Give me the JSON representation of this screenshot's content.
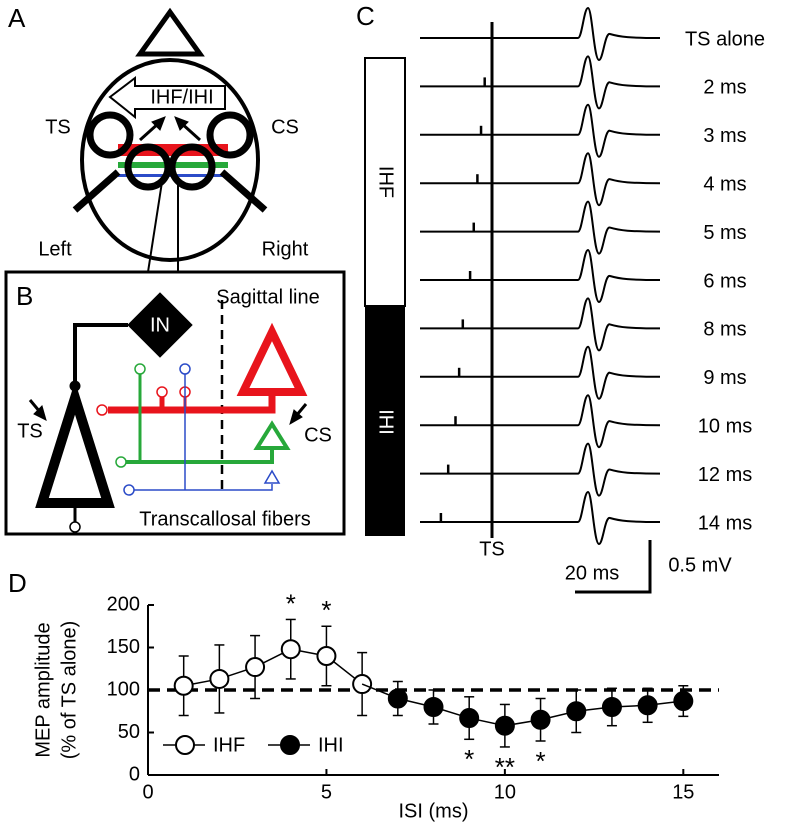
{
  "panels": {
    "a": {
      "label": "A",
      "arrow_label": "IHF/IHI",
      "left_coil": "TS",
      "right_coil": "CS",
      "left": "Left",
      "right": "Right"
    },
    "b": {
      "label": "B",
      "interneuron": "IN",
      "sagittal_line": "Sagittal line",
      "ts": "TS",
      "cs": "CS",
      "fibers": "Transcallosal fibers"
    },
    "c": {
      "label": "C",
      "traces": [
        "TS alone",
        "2 ms",
        "3 ms",
        "4 ms",
        "5 ms",
        "6 ms",
        "8 ms",
        "9 ms",
        "10 ms",
        "12 ms",
        "14 ms"
      ],
      "bar_top": "IHF",
      "bar_bottom": "IHI",
      "ts_marker": "TS",
      "time_scale": "20 ms",
      "voltage_scale": "0.5 mV"
    },
    "d": {
      "label": "D"
    }
  },
  "chart_data": {
    "type": "line",
    "xlabel": "ISI (ms)",
    "ylabel": [
      "MEP amplitude",
      "(% of TS alone)"
    ],
    "xlim": [
      0,
      16
    ],
    "xticks": [
      0,
      5,
      10,
      15
    ],
    "ylim": [
      0,
      200
    ],
    "yticks": [
      0,
      50,
      100,
      150,
      200
    ],
    "reference_line": 100,
    "series": [
      {
        "name": "IHF",
        "marker": "open",
        "color": "#000000",
        "x": [
          1,
          2,
          3,
          4,
          5,
          6
        ],
        "values": [
          105,
          113,
          127,
          148,
          140,
          107
        ],
        "errors": [
          35,
          40,
          37,
          35,
          35,
          37
        ]
      },
      {
        "name": "IHI",
        "marker": "filled",
        "color": "#000000",
        "x": [
          7,
          8,
          9,
          10,
          11,
          12,
          13,
          14,
          15
        ],
        "values": [
          90,
          80,
          67,
          58,
          65,
          75,
          80,
          82,
          87
        ],
        "errors": [
          20,
          20,
          25,
          25,
          25,
          25,
          22,
          20,
          18
        ]
      }
    ],
    "annotations": [
      {
        "x": 4,
        "text": "*"
      },
      {
        "x": 5,
        "text": "*"
      },
      {
        "x": 9,
        "text": "*"
      },
      {
        "x": 10,
        "text": "**"
      },
      {
        "x": 11,
        "text": "*"
      }
    ]
  }
}
